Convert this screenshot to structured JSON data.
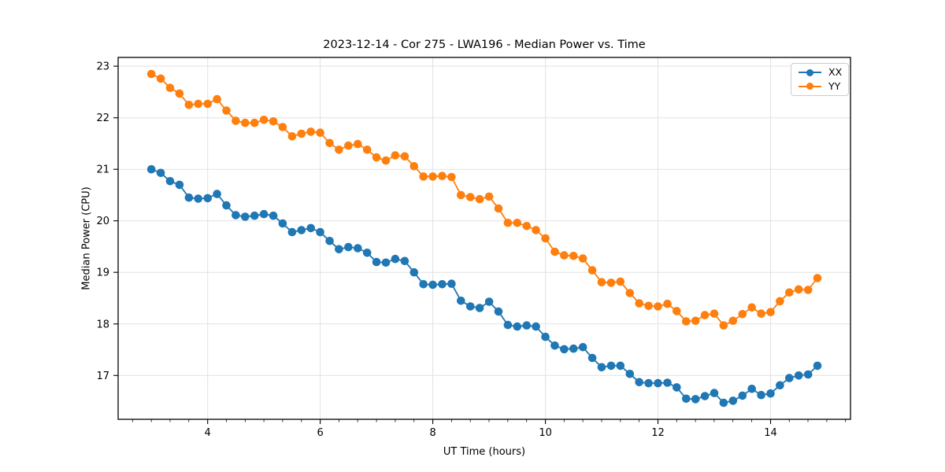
{
  "colors": {
    "grid": "#e2e2e2",
    "spine": "#000000",
    "tick": "#000000",
    "text": "#000000",
    "legend_border": "#cccccc",
    "series_blue": "#1f77b4",
    "series_orange": "#ff7f0e"
  },
  "chart_data": {
    "type": "line",
    "title": "2023-12-14 - Cor 275 - LWA196 - Median Power vs. Time",
    "xlabel": "UT Time (hours)",
    "ylabel": "Median Power (CPU)",
    "xlim": [
      2.41,
      15.42
    ],
    "ylim": [
      16.15,
      23.17
    ],
    "xticks": [
      4,
      6,
      8,
      10,
      12,
      14
    ],
    "yticks": [
      17,
      18,
      19,
      20,
      21,
      22,
      23
    ],
    "x_minor_step": 0.3333,
    "grid": true,
    "legend_position": "upper right",
    "marker": "circle",
    "x": [
      3.0,
      3.167,
      3.333,
      3.5,
      3.667,
      3.833,
      4.0,
      4.167,
      4.333,
      4.5,
      4.667,
      4.833,
      5.0,
      5.167,
      5.333,
      5.5,
      5.667,
      5.833,
      6.0,
      6.167,
      6.333,
      6.5,
      6.667,
      6.833,
      7.0,
      7.167,
      7.333,
      7.5,
      7.667,
      7.833,
      8.0,
      8.167,
      8.333,
      8.5,
      8.667,
      8.833,
      9.0,
      9.167,
      9.333,
      9.5,
      9.667,
      9.833,
      10.0,
      10.167,
      10.333,
      10.5,
      10.667,
      10.833,
      11.0,
      11.167,
      11.333,
      11.5,
      11.667,
      11.833,
      12.0,
      12.167,
      12.333,
      12.5,
      12.667,
      12.833,
      13.0,
      13.167,
      13.333,
      13.5,
      13.667,
      13.833,
      14.0,
      14.167,
      14.333,
      14.5,
      14.667,
      14.833
    ],
    "series": [
      {
        "name": "XX",
        "color": "#1f77b4",
        "values": [
          21.0,
          20.93,
          20.77,
          20.7,
          20.45,
          20.43,
          20.44,
          20.52,
          20.3,
          20.11,
          20.08,
          20.1,
          20.13,
          20.1,
          19.95,
          19.78,
          19.82,
          19.86,
          19.78,
          19.61,
          19.45,
          19.49,
          19.47,
          19.38,
          19.2,
          19.19,
          19.26,
          19.22,
          19.0,
          18.77,
          18.76,
          18.77,
          18.78,
          18.45,
          18.34,
          18.31,
          18.43,
          18.24,
          17.98,
          17.95,
          17.97,
          17.95,
          17.75,
          17.58,
          17.51,
          17.52,
          17.55,
          17.34,
          17.16,
          17.19,
          17.19,
          17.03,
          16.87,
          16.85,
          16.85,
          16.86,
          16.77,
          16.55,
          16.54,
          16.6,
          16.66,
          16.47,
          16.51,
          16.61,
          16.74,
          16.62,
          16.65,
          16.81,
          16.95,
          17.0,
          17.02,
          17.19
        ]
      },
      {
        "name": "YY",
        "color": "#ff7f0e",
        "values": [
          22.85,
          22.76,
          22.58,
          22.47,
          22.25,
          22.27,
          22.27,
          22.36,
          22.14,
          21.94,
          21.9,
          21.9,
          21.96,
          21.93,
          21.82,
          21.64,
          21.69,
          21.73,
          21.71,
          21.51,
          21.38,
          21.46,
          21.49,
          21.38,
          21.23,
          21.17,
          21.27,
          21.25,
          21.06,
          20.86,
          20.86,
          20.87,
          20.85,
          20.5,
          20.46,
          20.42,
          20.47,
          20.24,
          19.96,
          19.96,
          19.9,
          19.82,
          19.66,
          19.4,
          19.33,
          19.32,
          19.27,
          19.04,
          18.81,
          18.8,
          18.82,
          18.6,
          18.4,
          18.35,
          18.34,
          18.39,
          18.25,
          18.05,
          18.06,
          18.17,
          18.2,
          17.97,
          18.06,
          18.19,
          18.32,
          18.2,
          18.23,
          18.44,
          18.61,
          18.67,
          18.66,
          18.89
        ]
      }
    ]
  }
}
